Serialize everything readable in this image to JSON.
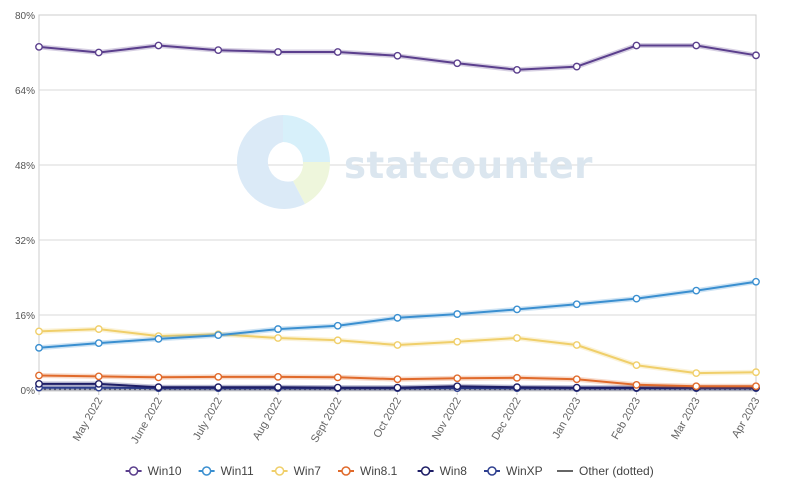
{
  "watermark": {
    "text": "statcounter"
  },
  "chart_data": {
    "type": "line",
    "categories": [
      "",
      "May 2022",
      "June 2022",
      "July 2022",
      "Aug 2022",
      "Sept 2022",
      "Oct 2022",
      "Nov 2022",
      "Dec 2022",
      "Jan 2023",
      "Feb 2023",
      "Mar 2023",
      "Apr 2023"
    ],
    "yticks": [
      "0%",
      "16%",
      "32%",
      "48%",
      "64%",
      "80%"
    ],
    "ylim": [
      0,
      80
    ],
    "grid": true,
    "legend_position": "bottom",
    "series": [
      {
        "name": "Win10",
        "color": "#5b3f8d",
        "dotted": false,
        "values": [
          73.2,
          72.0,
          73.5,
          72.5,
          72.1,
          72.1,
          71.3,
          69.7,
          68.3,
          69.0,
          73.5,
          73.5,
          71.4
        ]
      },
      {
        "name": "Win11",
        "color": "#3a8fd0",
        "dotted": false,
        "values": [
          9.0,
          10.0,
          10.9,
          11.7,
          13.0,
          13.7,
          15.4,
          16.2,
          17.2,
          18.3,
          19.5,
          21.2,
          23.1
        ]
      },
      {
        "name": "Win7",
        "color": "#f0cf6a",
        "dotted": false,
        "values": [
          12.5,
          13.0,
          11.5,
          11.9,
          11.1,
          10.6,
          9.6,
          10.3,
          11.1,
          9.6,
          5.3,
          3.6,
          3.8
        ]
      },
      {
        "name": "Win8.1",
        "color": "#e06a2b",
        "dotted": false,
        "values": [
          3.1,
          2.9,
          2.7,
          2.8,
          2.8,
          2.7,
          2.3,
          2.5,
          2.6,
          2.3,
          1.1,
          0.8,
          0.8
        ]
      },
      {
        "name": "Win8",
        "color": "#1e1e66",
        "dotted": false,
        "values": [
          1.3,
          1.3,
          0.6,
          0.6,
          0.6,
          0.5,
          0.5,
          0.8,
          0.6,
          0.5,
          0.5,
          0.5,
          0.5
        ]
      },
      {
        "name": "WinXP",
        "color": "#2e3f8f",
        "dotted": false,
        "values": [
          0.5,
          0.5,
          0.4,
          0.4,
          0.4,
          0.4,
          0.4,
          0.4,
          0.4,
          0.4,
          0.4,
          0.4,
          0.4
        ]
      },
      {
        "name": "Other (dotted)",
        "color": "#666666",
        "dotted": true,
        "values": [
          0.2,
          0.2,
          0.2,
          0.2,
          0.2,
          0.2,
          0.2,
          0.2,
          0.2,
          0.2,
          0.2,
          0.2,
          0.2
        ]
      }
    ]
  }
}
